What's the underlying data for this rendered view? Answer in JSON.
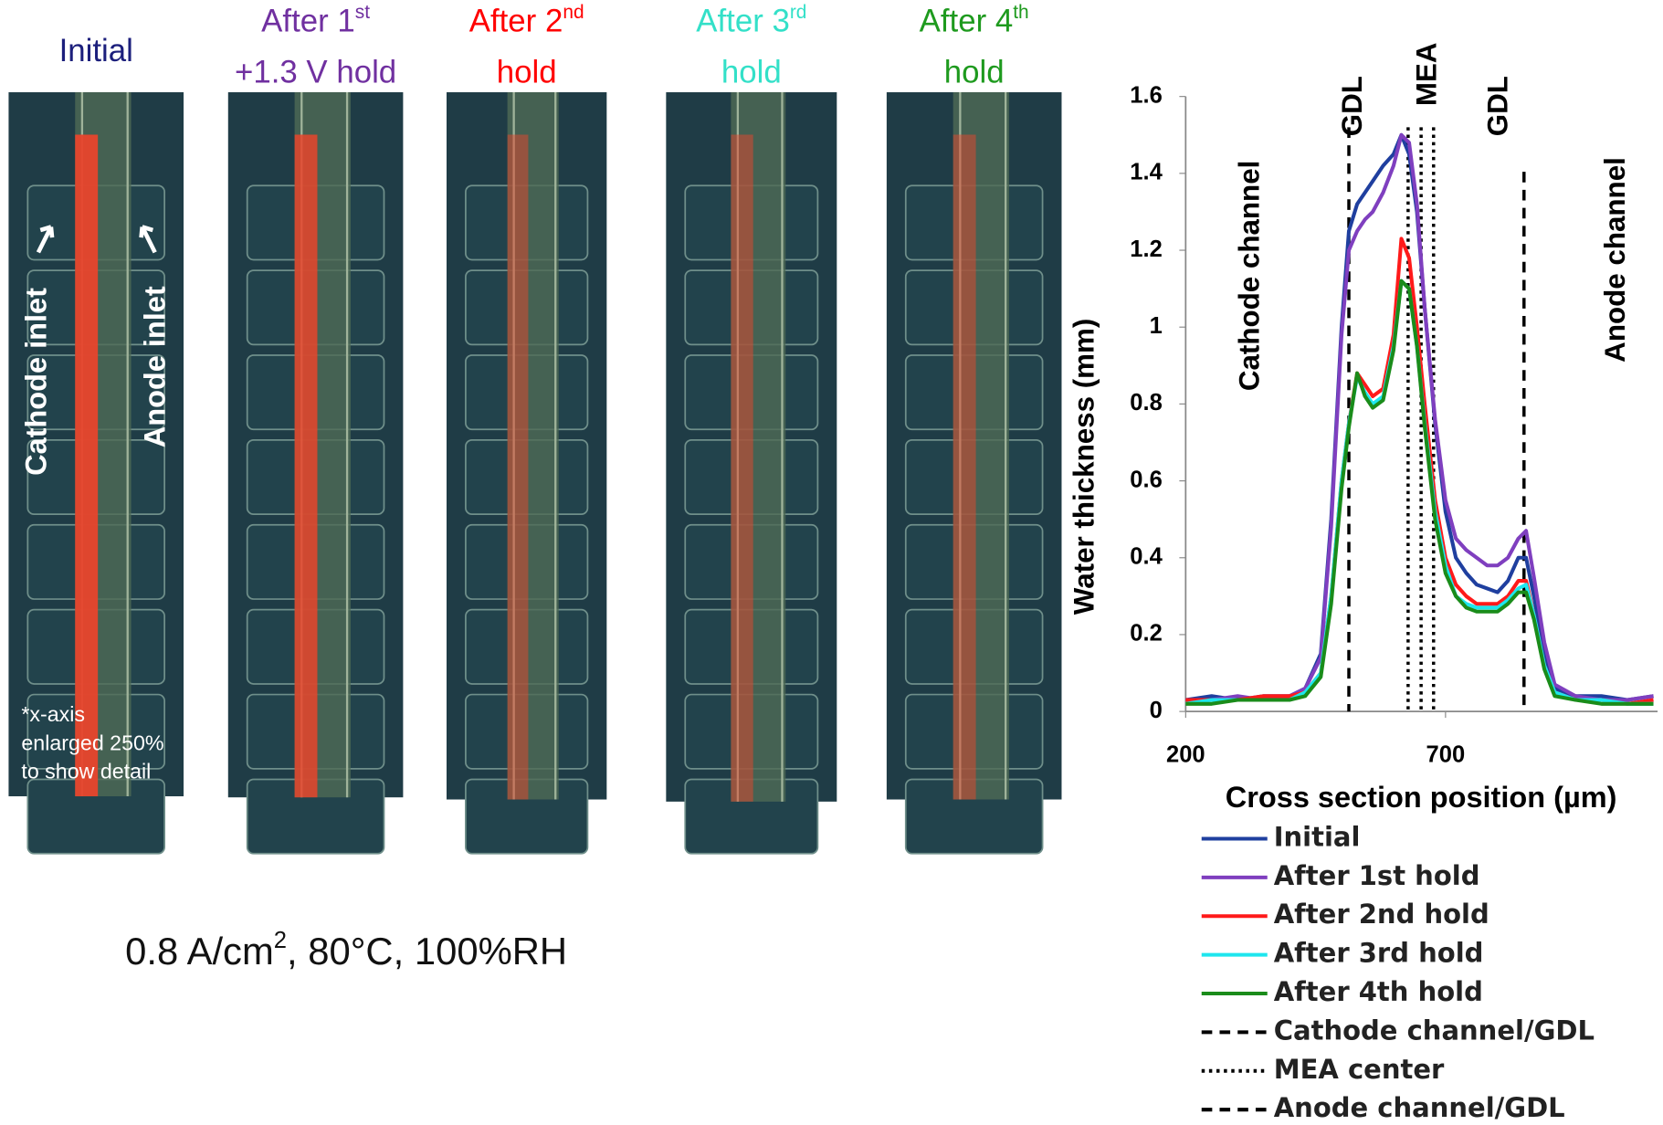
{
  "panels": [
    {
      "line1": "Initial",
      "color": "#1c1f7c"
    },
    {
      "line1": "After 1",
      "sup": "st",
      "line2": "+1.3 V hold",
      "color": "#7030a0"
    },
    {
      "line1": "After 2",
      "sup": "nd",
      "line2": "hold",
      "color": "#ff0000"
    },
    {
      "line1": "After 3",
      "sup": "rd",
      "line2": "hold",
      "color": "#33e0c8"
    },
    {
      "line1": "After 4",
      "sup": "th",
      "line2": "hold",
      "color": "#1e9a1e"
    }
  ],
  "panel_labels": {
    "cathode": "Cathode  inlet",
    "anode": "Anode  inlet",
    "note": [
      "*x-axis",
      "enlarged 250%",
      "to show detail"
    ]
  },
  "caption": {
    "text": "0.8 A/cm",
    "sup": "2",
    "rest": ", 80°C, 100%RH"
  },
  "chart_data": {
    "type": "line",
    "xlabel": "Cross section position (µm)",
    "ylabel": "Water thickness (mm)",
    "xlim": [
      200,
      1108
    ],
    "xticks": [
      200,
      700
    ],
    "ylim": [
      0,
      1.6
    ],
    "yticks": [
      0,
      0.2,
      0.4,
      0.6,
      0.8,
      1,
      1.2,
      1.4,
      1.6
    ],
    "x": [
      200,
      250,
      300,
      350,
      400,
      430,
      460,
      480,
      500,
      514,
      530,
      545,
      560,
      580,
      600,
      615,
      630,
      645,
      660,
      680,
      700,
      720,
      740,
      760,
      780,
      800,
      820,
      840,
      855,
      870,
      890,
      910,
      950,
      1000,
      1050,
      1100
    ],
    "series": [
      {
        "name": "Initial",
        "color": "#1f3f9f",
        "values": [
          0.03,
          0.04,
          0.03,
          0.04,
          0.04,
          0.06,
          0.15,
          0.5,
          1.0,
          1.25,
          1.32,
          1.35,
          1.38,
          1.42,
          1.45,
          1.5,
          1.45,
          1.3,
          1.05,
          0.75,
          0.52,
          0.4,
          0.36,
          0.33,
          0.32,
          0.31,
          0.34,
          0.4,
          0.4,
          0.3,
          0.15,
          0.06,
          0.04,
          0.04,
          0.03,
          0.04
        ]
      },
      {
        "name": "After 1st hold",
        "color": "#7f3fbf",
        "values": [
          0.03,
          0.03,
          0.04,
          0.03,
          0.04,
          0.06,
          0.14,
          0.48,
          0.98,
          1.2,
          1.25,
          1.28,
          1.3,
          1.35,
          1.42,
          1.5,
          1.48,
          1.32,
          1.05,
          0.76,
          0.55,
          0.45,
          0.42,
          0.4,
          0.38,
          0.38,
          0.4,
          0.45,
          0.47,
          0.35,
          0.18,
          0.07,
          0.04,
          0.03,
          0.03,
          0.04
        ]
      },
      {
        "name": "After 2nd hold",
        "color": "#ff1a1a",
        "values": [
          0.03,
          0.03,
          0.03,
          0.04,
          0.04,
          0.05,
          0.1,
          0.3,
          0.6,
          0.75,
          0.88,
          0.85,
          0.82,
          0.84,
          0.98,
          1.23,
          1.18,
          1.0,
          0.8,
          0.55,
          0.4,
          0.33,
          0.3,
          0.28,
          0.28,
          0.28,
          0.3,
          0.34,
          0.34,
          0.25,
          0.12,
          0.05,
          0.03,
          0.03,
          0.02,
          0.03
        ]
      },
      {
        "name": "After 3rd hold",
        "color": "#1ee6ee",
        "values": [
          0.02,
          0.03,
          0.03,
          0.03,
          0.03,
          0.05,
          0.1,
          0.3,
          0.6,
          0.75,
          0.87,
          0.83,
          0.8,
          0.82,
          0.95,
          1.12,
          1.1,
          0.95,
          0.75,
          0.52,
          0.38,
          0.3,
          0.28,
          0.27,
          0.27,
          0.27,
          0.29,
          0.32,
          0.33,
          0.25,
          0.12,
          0.05,
          0.03,
          0.03,
          0.02,
          0.02
        ]
      },
      {
        "name": "After 4th hold",
        "color": "#1a8c1a",
        "values": [
          0.02,
          0.02,
          0.03,
          0.03,
          0.03,
          0.04,
          0.09,
          0.28,
          0.58,
          0.74,
          0.88,
          0.82,
          0.79,
          0.81,
          0.94,
          1.12,
          1.1,
          0.95,
          0.74,
          0.5,
          0.36,
          0.3,
          0.27,
          0.26,
          0.26,
          0.26,
          0.28,
          0.31,
          0.31,
          0.24,
          0.11,
          0.04,
          0.03,
          0.02,
          0.02,
          0.02
        ]
      }
    ],
    "reference_lines": [
      {
        "name": "Cathode channel/GDL",
        "x": [
          514
        ],
        "style": "dashed"
      },
      {
        "name": "MEA center",
        "x": [
          628,
          653,
          677
        ],
        "style": "dotted"
      },
      {
        "name": "Anode channel/GDL",
        "x": [
          851
        ],
        "style": "dashed"
      }
    ],
    "annotations": [
      "GDL",
      "MEA",
      "GDL",
      "Cathode channel",
      "Anode channel"
    ]
  }
}
